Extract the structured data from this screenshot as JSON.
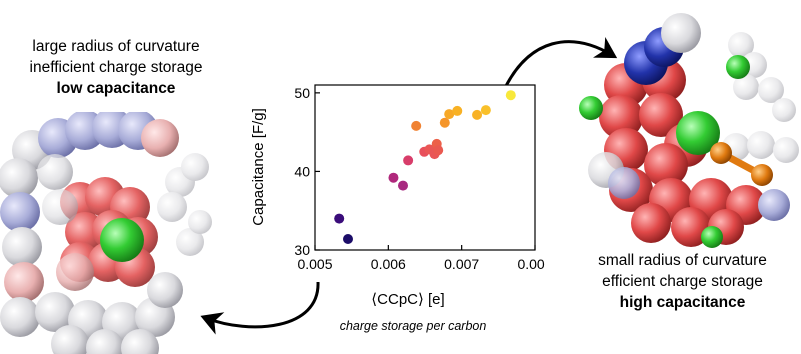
{
  "left_caption": {
    "line1": "large radius of curvature",
    "line2": "inefficient charge storage",
    "line3": "low capacitance"
  },
  "right_caption": {
    "line1": "small radius of curvature",
    "line2": "efficient charge storage",
    "line3": "high capacitance"
  },
  "subcaption": "charge storage per carbon",
  "chart_data": {
    "type": "scatter",
    "xlabel": "⟨CCpC⟩ [e]",
    "ylabel": "Capacitance [F/g]",
    "xlim": [
      0.005,
      0.008
    ],
    "ylim": [
      30,
      51
    ],
    "xticks": [
      "0.005",
      "0.006",
      "0.007",
      "0.008"
    ],
    "yticks": [
      "30",
      "40",
      "50"
    ],
    "points": [
      {
        "x": 0.00533,
        "y": 34.0,
        "color": "#3a0c7a"
      },
      {
        "x": 0.00545,
        "y": 31.4,
        "color": "#1b0c68"
      },
      {
        "x": 0.00607,
        "y": 39.2,
        "color": "#b0287c"
      },
      {
        "x": 0.0062,
        "y": 38.2,
        "color": "#a82a80"
      },
      {
        "x": 0.00627,
        "y": 41.4,
        "color": "#d83d6a"
      },
      {
        "x": 0.00638,
        "y": 45.8,
        "color": "#f08232"
      },
      {
        "x": 0.00649,
        "y": 42.5,
        "color": "#e84f5b"
      },
      {
        "x": 0.00656,
        "y": 42.8,
        "color": "#ea5655"
      },
      {
        "x": 0.00663,
        "y": 42.2,
        "color": "#e95657"
      },
      {
        "x": 0.00666,
        "y": 43.5,
        "color": "#ec6048"
      },
      {
        "x": 0.00668,
        "y": 42.7,
        "color": "#ea5950"
      },
      {
        "x": 0.00677,
        "y": 46.2,
        "color": "#f5952a"
      },
      {
        "x": 0.00683,
        "y": 47.3,
        "color": "#f7a826"
      },
      {
        "x": 0.00694,
        "y": 47.7,
        "color": "#f8b124"
      },
      {
        "x": 0.00721,
        "y": 47.2,
        "color": "#f8b226"
      },
      {
        "x": 0.00733,
        "y": 47.8,
        "color": "#f9c02a"
      },
      {
        "x": 0.00767,
        "y": 49.7,
        "color": "#f8e83a"
      }
    ]
  },
  "colors": {
    "carbon_red": "#d63a3a",
    "carbon_white": "#e8e8ea",
    "nitrogen_blue": "#2233aa",
    "ion_green": "#33cc33",
    "ion_orange": "#e07a10"
  }
}
